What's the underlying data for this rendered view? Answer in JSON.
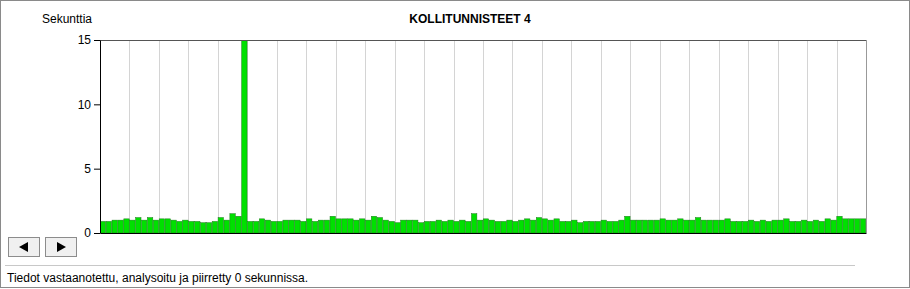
{
  "chart_data": {
    "type": "bar",
    "title": "KOLLITUNNISTEET 4",
    "ylabel": "Sekunttia",
    "annotations": [
      "Tiedot vastaanotettu, analysoitu ja piirretty 0 sekunnissa."
    ],
    "categories": [
      null,
      null,
      null,
      null,
      null,
      null,
      null,
      null,
      null,
      null,
      null,
      null,
      null,
      null,
      null,
      null,
      null,
      null,
      null,
      null,
      null,
      null,
      null,
      null,
      null,
      null,
      null,
      null,
      null,
      null,
      null,
      null,
      null,
      null,
      null,
      null,
      null,
      null,
      null,
      null,
      null,
      null,
      null,
      null,
      null,
      null,
      null,
      null,
      null,
      null,
      null,
      null,
      null,
      null,
      null,
      null,
      null,
      null,
      null,
      null,
      null,
      null,
      null,
      null,
      null,
      null,
      null,
      null,
      null,
      null,
      null,
      null,
      null,
      null,
      null,
      null,
      null,
      null,
      null,
      null,
      null,
      null,
      null,
      null,
      null,
      null,
      null,
      null,
      null,
      null,
      null,
      null,
      null,
      null,
      null,
      null,
      null,
      null,
      null,
      null,
      null,
      null,
      null,
      null,
      null,
      null,
      null,
      null,
      null,
      null,
      null,
      null,
      null,
      null,
      null,
      null,
      null,
      null,
      null,
      null,
      null,
      null,
      null,
      null,
      null,
      null,
      null,
      null,
      null,
      null
    ],
    "values": [
      0.9,
      0.9,
      1.0,
      1.0,
      1.1,
      1.0,
      1.2,
      1.0,
      1.2,
      1.0,
      1.1,
      1.1,
      1.0,
      0.9,
      1.0,
      0.9,
      0.9,
      0.8,
      0.8,
      0.9,
      1.2,
      1.0,
      1.5,
      1.3,
      15,
      0.9,
      0.9,
      1.1,
      1.0,
      0.9,
      0.9,
      1.0,
      1.0,
      1.0,
      0.9,
      1.1,
      0.9,
      1.0,
      1.0,
      1.3,
      1.1,
      1.1,
      1.1,
      1.0,
      1.1,
      1.0,
      1.3,
      1.2,
      1.0,
      0.9,
      0.8,
      1.0,
      1.0,
      1.0,
      0.8,
      0.9,
      0.9,
      1.0,
      0.9,
      1.0,
      0.9,
      1.0,
      0.9,
      1.5,
      1.0,
      1.1,
      1.0,
      0.9,
      0.9,
      1.0,
      0.9,
      1.0,
      1.1,
      1.0,
      1.2,
      1.1,
      1.0,
      1.1,
      0.9,
      0.9,
      1.0,
      0.8,
      0.9,
      0.9,
      0.9,
      1.0,
      0.9,
      0.9,
      1.0,
      1.3,
      1.0,
      1.0,
      1.0,
      1.0,
      1.0,
      1.1,
      1.0,
      1.0,
      1.1,
      1.0,
      1.0,
      1.2,
      1.0,
      1.0,
      1.0,
      1.0,
      1.1,
      0.9,
      0.9,
      0.9,
      1.0,
      0.9,
      1.0,
      0.9,
      1.0,
      1.0,
      1.1,
      0.9,
      0.9,
      1.0,
      0.9,
      1.0,
      0.9,
      1.1,
      1.0,
      1.3,
      1.1,
      1.1,
      1.1,
      1.1
    ],
    "color": "#00e000",
    "ylim": [
      0,
      15
    ],
    "yticks": [
      0,
      5,
      10,
      15
    ],
    "grid": true
  }
}
